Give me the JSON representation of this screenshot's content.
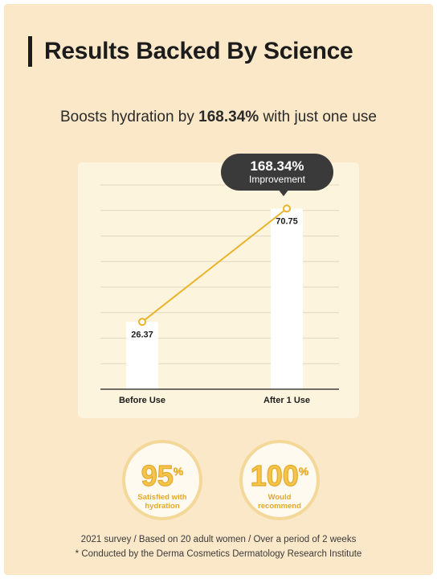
{
  "header": {
    "title": "Results Backed By Science"
  },
  "subtitle": {
    "prefix": "Boosts hydration by ",
    "highlight": "168.34%",
    "suffix": " with just one use"
  },
  "badge": {
    "value": "168.34%",
    "label": "Improvement"
  },
  "chart_data": {
    "type": "bar",
    "categories": [
      "Before Use",
      "After 1 Use"
    ],
    "values": [
      26.37,
      70.75
    ],
    "value_labels": [
      "26.37",
      "70.75"
    ],
    "overlay": "line",
    "ylim": [
      0,
      80
    ],
    "grid": true,
    "title": "",
    "xlabel": "",
    "ylabel": ""
  },
  "stats": [
    {
      "number": "95",
      "unit": "%",
      "label_line1": "Satisfied with",
      "label_line2": "hydration"
    },
    {
      "number": "100",
      "unit": "%",
      "label_line1": "Would",
      "label_line2": "recommend"
    }
  ],
  "footnotes": [
    "2021 survey / Based on 20 adult women / Over a period of 2 weeks",
    "* Conducted by the Derma Cosmetics Dermatology Research Institute"
  ],
  "colors": {
    "background": "#fbe8c8",
    "card": "#fdf4dd",
    "accent": "#e9b32c",
    "badge": "#3a3a3a"
  }
}
